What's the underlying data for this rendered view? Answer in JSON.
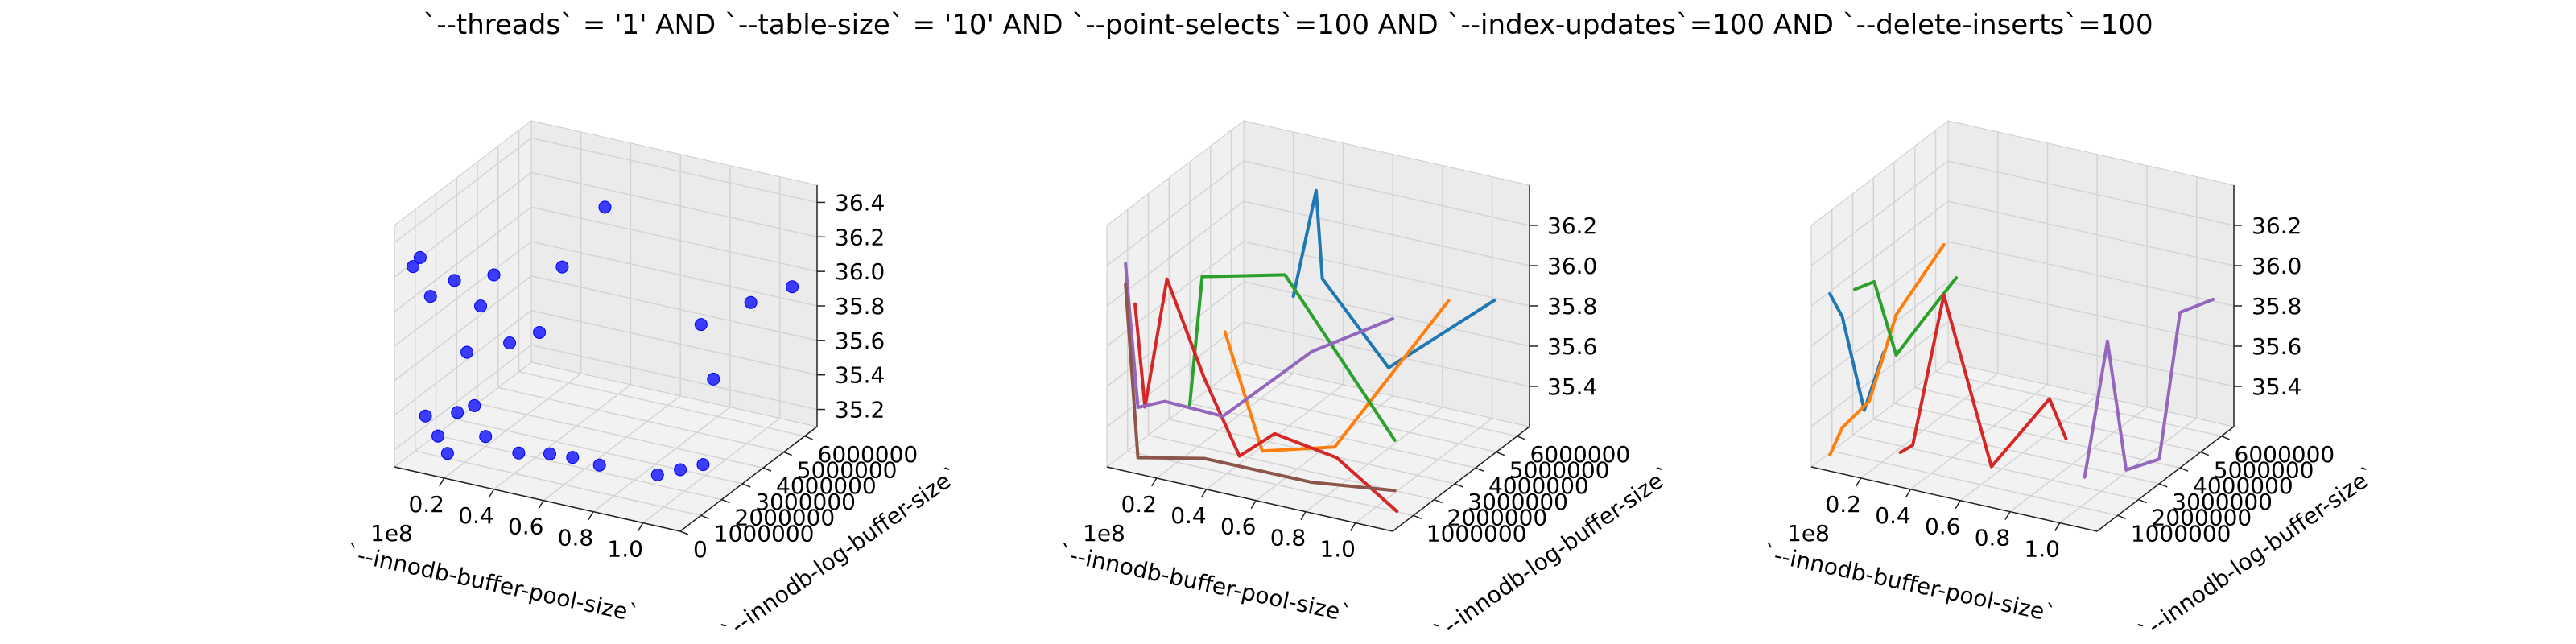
{
  "figure": {
    "title": "`--threads` = '1' AND `--table-size` = '10'  AND `--point-selects`=100 AND `--index-updates`=100 AND `--delete-inserts`=100"
  },
  "chart_data": [
    {
      "type": "scatter",
      "projection": "3d",
      "xlabel": "`--innodb-buffer-pool-size`",
      "ylabel": "`--innodb-log-buffer-size`",
      "zlabel": "",
      "x_offset_label": "1e8",
      "xlim": [
        0.0,
        1.15
      ],
      "ylim": [
        0,
        6600000
      ],
      "zlim": [
        35.1,
        36.5
      ],
      "x_ticks": [
        0.2,
        0.4,
        0.6,
        0.8,
        1.0
      ],
      "x_tick_labels": [
        "0.2",
        "0.4",
        "0.6",
        "0.8",
        "1.0"
      ],
      "y_ticks": [
        0,
        1000000,
        2000000,
        3000000,
        4000000,
        5000000,
        6000000
      ],
      "y_tick_labels": [
        "0",
        "1000000",
        "2000000",
        "3000000",
        "4000000",
        "5000000",
        "6000000"
      ],
      "z_ticks": [
        35.2,
        35.4,
        35.6,
        35.8,
        36.0,
        36.2,
        36.4
      ],
      "z_tick_labels": [
        "35.2",
        "35.4",
        "35.6",
        "35.8",
        "36.0",
        "36.2",
        "36.4"
      ],
      "grid": true,
      "series": [
        {
          "color": "#0000ff",
          "points": [
            [
              0.05,
              300000,
              36.25
            ],
            [
              0.07,
              400000,
              36.3
            ],
            [
              0.12,
              300000,
              36.1
            ],
            [
              0.2,
              500000,
              36.2
            ],
            [
              0.28,
              800000,
              36.05
            ],
            [
              0.3,
              1200000,
              36.2
            ],
            [
              0.25,
              500000,
              35.8
            ],
            [
              0.38,
              1000000,
              35.85
            ],
            [
              0.55,
              1500000,
              36.3
            ],
            [
              0.58,
              3200000,
              36.5
            ],
            [
              0.5,
              1000000,
              35.95
            ],
            [
              0.1,
              300000,
              35.4
            ],
            [
              0.15,
              300000,
              35.3
            ],
            [
              0.22,
              400000,
              35.45
            ],
            [
              0.28,
              500000,
              35.5
            ],
            [
              0.3,
              800000,
              35.3
            ],
            [
              0.18,
              400000,
              35.2
            ],
            [
              0.4,
              1200000,
              35.2
            ],
            [
              0.5,
              1500000,
              35.2
            ],
            [
              0.55,
              2000000,
              35.15
            ],
            [
              0.7,
              1500000,
              35.2
            ],
            [
              0.85,
              2500000,
              35.1
            ],
            [
              0.9,
              3000000,
              35.1
            ],
            [
              0.95,
              3500000,
              35.1
            ],
            [
              0.9,
              4000000,
              35.85
            ],
            [
              0.95,
              4000000,
              35.55
            ],
            [
              1.0,
              5200000,
              35.9
            ],
            [
              1.1,
              6000000,
              35.95
            ]
          ]
        }
      ]
    },
    {
      "type": "line",
      "projection": "3d",
      "xlabel": "`--innodb-buffer-pool-size`",
      "ylabel": "`--innodb-log-buffer-size`",
      "zlabel": "",
      "x_offset_label": "1e8",
      "xlim": [
        0.0,
        1.15
      ],
      "ylim": [
        0,
        6600000
      ],
      "zlim": [
        35.2,
        36.4
      ],
      "x_ticks": [
        0.2,
        0.4,
        0.6,
        0.8,
        1.0
      ],
      "x_tick_labels": [
        "0.2",
        "0.4",
        "0.6",
        "0.8",
        "1.0"
      ],
      "y_ticks": [
        1000000,
        2000000,
        3000000,
        4000000,
        5000000,
        6000000
      ],
      "y_tick_labels": [
        "1000000",
        "2000000",
        "3000000",
        "4000000",
        "5000000",
        "6000000"
      ],
      "z_ticks": [
        35.4,
        35.6,
        35.8,
        36.0,
        36.2
      ],
      "z_tick_labels": [
        "35.4",
        "35.6",
        "35.8",
        "36.0",
        "36.2"
      ],
      "grid": true,
      "series": [
        {
          "color": "#1f77b4",
          "points": [
            [
              0.5,
              3000000,
              35.95
            ],
            [
              0.55,
              3500000,
              36.45
            ],
            [
              0.6,
              3200000,
              36.05
            ],
            [
              0.8,
              4000000,
              35.6
            ],
            [
              1.1,
              5500000,
              35.9
            ]
          ]
        },
        {
          "color": "#ff7f0e",
          "points": [
            [
              0.35,
              1500000,
              35.85
            ],
            [
              0.5,
              1500000,
              35.3
            ],
            [
              0.75,
              2000000,
              35.35
            ],
            [
              1.0,
              4500000,
              35.95
            ]
          ]
        },
        {
          "color": "#2ca02c",
          "points": [
            [
              0.25,
              1000000,
              35.5
            ],
            [
              0.3,
              1000000,
              36.15
            ],
            [
              0.55,
              2000000,
              36.15
            ],
            [
              0.95,
              2500000,
              35.4
            ]
          ]
        },
        {
          "color": "#d62728",
          "points": [
            [
              0.08,
              400000,
              36.0
            ],
            [
              0.12,
              400000,
              35.5
            ],
            [
              0.2,
              500000,
              36.15
            ],
            [
              0.35,
              500000,
              35.7
            ],
            [
              0.45,
              1000000,
              35.3
            ],
            [
              0.55,
              1500000,
              35.4
            ],
            [
              0.8,
              1500000,
              35.35
            ],
            [
              1.0,
              2000000,
              35.1
            ]
          ]
        },
        {
          "color": "#9467bd",
          "points": [
            [
              0.05,
              300000,
              36.2
            ],
            [
              0.1,
              300000,
              35.5
            ],
            [
              0.2,
              400000,
              35.55
            ],
            [
              0.4,
              800000,
              35.5
            ],
            [
              0.7,
              1500000,
              35.85
            ],
            [
              0.9,
              3000000,
              35.95
            ]
          ]
        },
        {
          "color": "#8c564b",
          "points": [
            [
              0.05,
              300000,
              36.1
            ],
            [
              0.1,
              300000,
              35.25
            ],
            [
              0.35,
              500000,
              35.3
            ],
            [
              0.7,
              1500000,
              35.2
            ],
            [
              0.95,
              2500000,
              35.15
            ]
          ]
        }
      ]
    },
    {
      "type": "line",
      "projection": "3d",
      "xlabel": "`--innodb-buffer-pool-size`",
      "ylabel": "`--innodb-log-buffer-size`",
      "zlabel": "",
      "x_offset_label": "1e8",
      "xlim": [
        0.0,
        1.15
      ],
      "ylim": [
        0,
        6600000
      ],
      "zlim": [
        35.2,
        36.4
      ],
      "x_ticks": [
        0.2,
        0.4,
        0.6,
        0.8,
        1.0
      ],
      "x_tick_labels": [
        "0.2",
        "0.4",
        "0.6",
        "0.8",
        "1.0"
      ],
      "y_ticks": [
        1000000,
        2000000,
        3000000,
        4000000,
        5000000,
        6000000
      ],
      "y_tick_labels": [
        "1000000",
        "2000000",
        "3000000",
        "4000000",
        "5000000",
        "6000000"
      ],
      "z_ticks": [
        35.4,
        35.6,
        35.8,
        36.0,
        36.2
      ],
      "z_tick_labels": [
        "35.4",
        "35.6",
        "35.8",
        "36.0",
        "36.2"
      ],
      "grid": true,
      "series": [
        {
          "color": "#1f77b4",
          "points": [
            [
              0.05,
              300000,
              36.05
            ],
            [
              0.1,
              300000,
              35.95
            ],
            [
              0.18,
              400000,
              35.5
            ],
            [
              0.25,
              500000,
              35.8
            ]
          ]
        },
        {
          "color": "#ff7f0e",
          "points": [
            [
              0.05,
              300000,
              35.25
            ],
            [
              0.1,
              300000,
              35.4
            ],
            [
              0.2,
              400000,
              35.55
            ],
            [
              0.3,
              500000,
              36.0
            ],
            [
              0.45,
              1000000,
              36.35
            ]
          ]
        },
        {
          "color": "#2ca02c",
          "points": [
            [
              0.15,
              300000,
              36.1
            ],
            [
              0.22,
              400000,
              36.15
            ],
            [
              0.3,
              500000,
              35.8
            ],
            [
              0.4,
              700000,
              36.0
            ],
            [
              0.5,
              1000000,
              36.2
            ]
          ]
        },
        {
          "color": "#d62728",
          "points": [
            [
              0.3,
              700000,
              35.3
            ],
            [
              0.35,
              700000,
              35.35
            ],
            [
              0.45,
              1000000,
              36.1
            ],
            [
              0.6,
              1500000,
              35.25
            ],
            [
              0.75,
              2500000,
              35.55
            ],
            [
              0.8,
              2700000,
              35.35
            ]
          ]
        },
        {
          "color": "#9467bd",
          "points": [
            [
              0.85,
              3000000,
              35.15
            ],
            [
              0.9,
              3500000,
              35.8
            ],
            [
              0.95,
              3800000,
              35.15
            ],
            [
              1.05,
              4200000,
              35.2
            ],
            [
              1.05,
              5200000,
              35.85
            ],
            [
              1.1,
              6200000,
              35.85
            ]
          ]
        }
      ]
    }
  ]
}
